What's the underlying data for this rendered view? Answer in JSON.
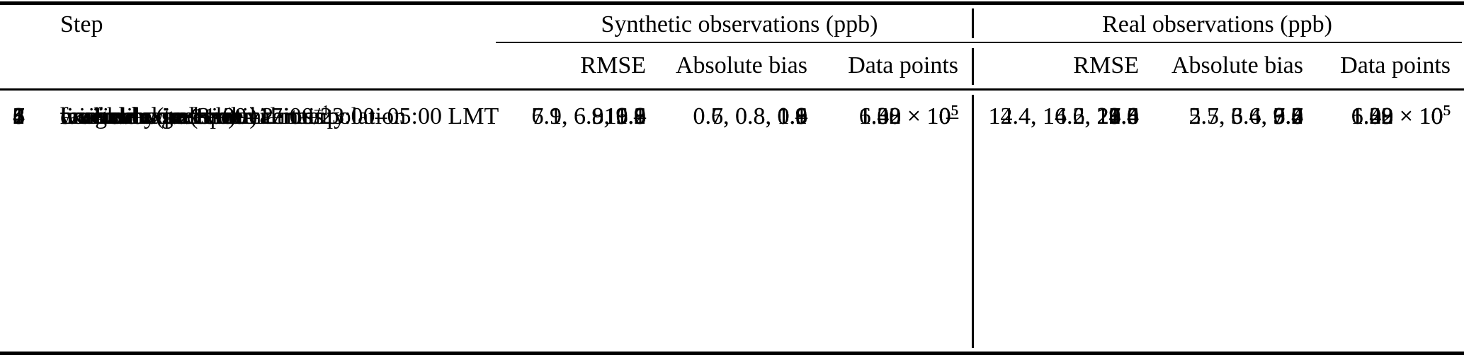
{
  "colors": {
    "background": "#ffffff",
    "text": "#000000",
    "rules": "#000000"
  },
  "table": {
    "headers": {
      "step": "Step",
      "syn": {
        "title": "Synthetic observations (ppb)",
        "rmse": "RMSE",
        "bias": "Absolute bias",
        "points": "Data points"
      },
      "real": {
        "title": "Real observations (ppb)",
        "rmse": "RMSE",
        "bias": "Absolute bias",
        "points": "Data points"
      }
    },
    "rows": [
      {
        "num": "1",
        "step": {
          "text": "horizontal and vertical interpolation",
          "sup": ""
        },
        "syn": {
          "rmse": "–",
          "bias": "–",
          "points": {
            "base": "–",
            "exp": ""
          }
        },
        "real": {
          "rmse": "27.6",
          "bias": "9.6",
          "points": {
            "base": "6.02 × 10",
            "exp": "5"
          }
        }
      },
      {
        "num": "2",
        "step": {
          "text": "time average (3 h)",
          "sup": ""
        },
        "syn": {
          "rmse": "11.1",
          "bias": "0.9",
          "points": {
            "base": "6.02 × 10",
            "exp": "5"
          }
        },
        "real": {
          "rmse": "25.8",
          "bias": "9.6",
          "points": {
            "base": "6.02 × 10",
            "exp": "5"
          }
        }
      },
      {
        "num": "3",
        "step": {
          "text": "time window 11:00–17:00/23:00–05:00 LMT",
          "sup": ""
        },
        "syn": {
          "rmse": "10.2",
          "bias": "1.1",
          "points": {
            "base": "1.48 × 10",
            "exp": "5"
          }
        },
        "real": {
          "rmse": "23.5",
          "bias": "9.8",
          "points": {
            "base": "1.48 × 10",
            "exp": "5"
          }
        }
      },
      {
        "num": "4",
        "step": {
          "text": "minimal wind speed 2 m s",
          "sup": "−1"
        },
        "syn": {
          "rmse": "9.6",
          "bias": "1.0",
          "points": {
            "base": "1.30 × 10",
            "exp": "5"
          }
        },
        "real": {
          "rmse": "22.4",
          "bias": "9.7",
          "points": {
            "base": "1.30 × 10",
            "exp": "5"
          }
        }
      },
      {
        "num": "5",
        "step": {
          "text": "exclude extreme deviations",
          "sup": ""
        },
        "syn": {
          "rmse": "9.6",
          "bias": "1.0",
          "points": {
            "base": "1.30 × 10",
            "exp": "5"
          }
        },
        "real": {
          "rmse": "21.5",
          "bias": "9.4",
          "points": {
            "base": "1.29 × 10",
            "exp": "5"
          }
        }
      },
      {
        "num": "6",
        "step": {
          "text": "far-field correction",
          "sup": ""
        },
        "syn": {
          "rmse": "9.0",
          "bias": "0.9",
          "points": {
            "base": "1.30 × 10",
            "exp": "5"
          }
        },
        "real": {
          "rmse": "19.4",
          "bias": "7.2",
          "points": {
            "base": "1.29 × 10",
            "exp": "5"
          }
        }
      },
      {
        "num": "7",
        "step": {
          "text": "weight by inverse uncertainty",
          "sup": ""
        },
        "syn": {
          "rmse": "7.1, 6.9, 6.9",
          "bias": "0.7, 0.8, 0.8",
          "points": {
            "base": "1.30 × 10",
            "exp": "5"
          }
        },
        "real": {
          "rmse": "14.4, 16.6, 16.6",
          "bias": "5.7, 6.6, 6.6",
          "points": {
            "base": "1.29 × 10",
            "exp": "5"
          }
        }
      },
      {
        "num": "8",
        "step": {
          "text": "inversion (posterior)",
          "sup": ""
        },
        "syn": {
          "rmse": "6.9, 6.8, 6.8",
          "bias": "0.6, 0.8, 0.6",
          "points": {
            "base": "1.30 × 10",
            "exp": "5"
          }
        },
        "real": {
          "rmse": "12.4, 14.2, 14.0",
          "bias": "2.5, 3.4, 3.0",
          "points": {
            "base": "1.29 × 10",
            "exp": "5"
          }
        }
      }
    ]
  }
}
